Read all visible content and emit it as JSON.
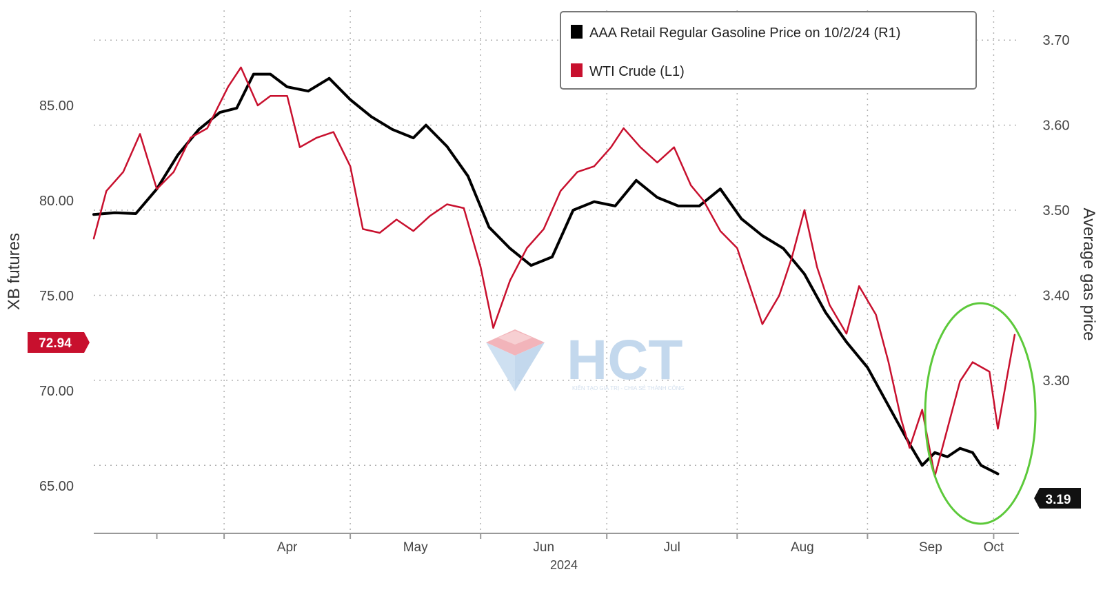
{
  "chart_data": {
    "type": "line",
    "xlabel": "2024",
    "ylabel_left": "XB futures",
    "ylabel_right": "Average gas price",
    "ylim_left": [
      62.5,
      90
    ],
    "ylim_right": [
      3.12,
      3.735
    ],
    "yticks_left": [
      "85.00",
      "80.00",
      "75.00",
      "70.00",
      "65.00"
    ],
    "yticks_right": [
      "3.70",
      "3.60",
      "3.50",
      "3.40",
      "3.30"
    ],
    "x_range": [
      "2024-03-01",
      "2024-10-07"
    ],
    "x_ticks": [
      {
        "label": "Apr",
        "date": "2024-04-01"
      },
      {
        "label": "May",
        "date": "2024-05-01"
      },
      {
        "label": "Jun",
        "date": "2024-06-01"
      },
      {
        "label": "Jul",
        "date": "2024-07-01"
      },
      {
        "label": "Aug",
        "date": "2024-08-01"
      },
      {
        "label": "Sep",
        "date": "2024-09-01"
      },
      {
        "label": "Oct",
        "date": "2024-10-01"
      }
    ],
    "grid": true,
    "legend_position": "top-right",
    "series": [
      {
        "name": "AAA Retail Regular Gasoline Price on 10/2/24 (R1)",
        "axis": "right",
        "color": "#000000",
        "last_value_label": "3.19",
        "points": [
          [
            "2024-03-01",
            3.495
          ],
          [
            "2024-03-06",
            3.497
          ],
          [
            "2024-03-11",
            3.496
          ],
          [
            "2024-03-16",
            3.525
          ],
          [
            "2024-03-21",
            3.565
          ],
          [
            "2024-03-26",
            3.595
          ],
          [
            "2024-03-31",
            3.615
          ],
          [
            "2024-04-04",
            3.62
          ],
          [
            "2024-04-08",
            3.66
          ],
          [
            "2024-04-12",
            3.66
          ],
          [
            "2024-04-16",
            3.645
          ],
          [
            "2024-04-21",
            3.64
          ],
          [
            "2024-04-26",
            3.655
          ],
          [
            "2024-05-01",
            3.63
          ],
          [
            "2024-05-06",
            3.61
          ],
          [
            "2024-05-11",
            3.595
          ],
          [
            "2024-05-16",
            3.585
          ],
          [
            "2024-05-19",
            3.6
          ],
          [
            "2024-05-24",
            3.575
          ],
          [
            "2024-05-29",
            3.54
          ],
          [
            "2024-06-03",
            3.48
          ],
          [
            "2024-06-08",
            3.455
          ],
          [
            "2024-06-13",
            3.435
          ],
          [
            "2024-06-18",
            3.445
          ],
          [
            "2024-06-23",
            3.5
          ],
          [
            "2024-06-28",
            3.51
          ],
          [
            "2024-07-03",
            3.505
          ],
          [
            "2024-07-08",
            3.535
          ],
          [
            "2024-07-13",
            3.515
          ],
          [
            "2024-07-18",
            3.505
          ],
          [
            "2024-07-23",
            3.505
          ],
          [
            "2024-07-28",
            3.525
          ],
          [
            "2024-08-02",
            3.49
          ],
          [
            "2024-08-07",
            3.47
          ],
          [
            "2024-08-12",
            3.455
          ],
          [
            "2024-08-17",
            3.425
          ],
          [
            "2024-08-22",
            3.38
          ],
          [
            "2024-08-27",
            3.345
          ],
          [
            "2024-09-01",
            3.315
          ],
          [
            "2024-09-06",
            3.27
          ],
          [
            "2024-09-11",
            3.225
          ],
          [
            "2024-09-14",
            3.2
          ],
          [
            "2024-09-17",
            3.215
          ],
          [
            "2024-09-20",
            3.21
          ],
          [
            "2024-09-23",
            3.22
          ],
          [
            "2024-09-26",
            3.215
          ],
          [
            "2024-09-28",
            3.2
          ],
          [
            "2024-10-02",
            3.19
          ]
        ]
      },
      {
        "name": "WTI Crude (L1)",
        "axis": "left",
        "color": "#c8102e",
        "last_value_label": "72.94",
        "points": [
          [
            "2024-03-01",
            78.0
          ],
          [
            "2024-03-04",
            80.5
          ],
          [
            "2024-03-08",
            81.5
          ],
          [
            "2024-03-12",
            83.5
          ],
          [
            "2024-03-16",
            80.6
          ],
          [
            "2024-03-20",
            81.5
          ],
          [
            "2024-03-24",
            83.3
          ],
          [
            "2024-03-28",
            83.8
          ],
          [
            "2024-04-02",
            86.0
          ],
          [
            "2024-04-05",
            87.0
          ],
          [
            "2024-04-09",
            85.0
          ],
          [
            "2024-04-12",
            85.5
          ],
          [
            "2024-04-16",
            85.5
          ],
          [
            "2024-04-19",
            82.8
          ],
          [
            "2024-04-23",
            83.3
          ],
          [
            "2024-04-27",
            83.6
          ],
          [
            "2024-05-01",
            81.8
          ],
          [
            "2024-05-04",
            78.5
          ],
          [
            "2024-05-08",
            78.3
          ],
          [
            "2024-05-12",
            79.0
          ],
          [
            "2024-05-16",
            78.4
          ],
          [
            "2024-05-20",
            79.2
          ],
          [
            "2024-05-24",
            79.8
          ],
          [
            "2024-05-28",
            79.6
          ],
          [
            "2024-06-01",
            76.5
          ],
          [
            "2024-06-04",
            73.3
          ],
          [
            "2024-06-08",
            75.8
          ],
          [
            "2024-06-12",
            77.5
          ],
          [
            "2024-06-16",
            78.5
          ],
          [
            "2024-06-20",
            80.5
          ],
          [
            "2024-06-24",
            81.5
          ],
          [
            "2024-06-28",
            81.8
          ],
          [
            "2024-07-02",
            82.8
          ],
          [
            "2024-07-05",
            83.8
          ],
          [
            "2024-07-09",
            82.8
          ],
          [
            "2024-07-13",
            82.0
          ],
          [
            "2024-07-17",
            82.8
          ],
          [
            "2024-07-21",
            80.8
          ],
          [
            "2024-07-24",
            80.0
          ],
          [
            "2024-07-28",
            78.4
          ],
          [
            "2024-08-01",
            77.5
          ],
          [
            "2024-08-04",
            75.5
          ],
          [
            "2024-08-07",
            73.5
          ],
          [
            "2024-08-11",
            75.0
          ],
          [
            "2024-08-14",
            77.0
          ],
          [
            "2024-08-17",
            79.5
          ],
          [
            "2024-08-20",
            76.5
          ],
          [
            "2024-08-23",
            74.5
          ],
          [
            "2024-08-27",
            73.0
          ],
          [
            "2024-08-30",
            75.5
          ],
          [
            "2024-09-03",
            74.0
          ],
          [
            "2024-09-06",
            71.5
          ],
          [
            "2024-09-09",
            68.5
          ],
          [
            "2024-09-11",
            67.0
          ],
          [
            "2024-09-14",
            69.0
          ],
          [
            "2024-09-17",
            65.5
          ],
          [
            "2024-09-20",
            68.0
          ],
          [
            "2024-09-23",
            70.5
          ],
          [
            "2024-09-26",
            71.5
          ],
          [
            "2024-09-30",
            71.0
          ],
          [
            "2024-10-02",
            68.0
          ],
          [
            "2024-10-04",
            70.5
          ],
          [
            "2024-10-06",
            72.94
          ]
        ]
      }
    ]
  },
  "watermark": {
    "brand": "HCT",
    "tagline": "KIẾN TẠO GIÁ TRỊ - CHIA SẺ THÀNH CÔNG"
  },
  "colors": {
    "black_series": "#000000",
    "red_series": "#c8102e",
    "highlight_ellipse": "#5cc93a",
    "grid": "#b0b0b0",
    "watermark_blue": "#b9d2ea",
    "watermark_red": "#f0a8ae"
  }
}
